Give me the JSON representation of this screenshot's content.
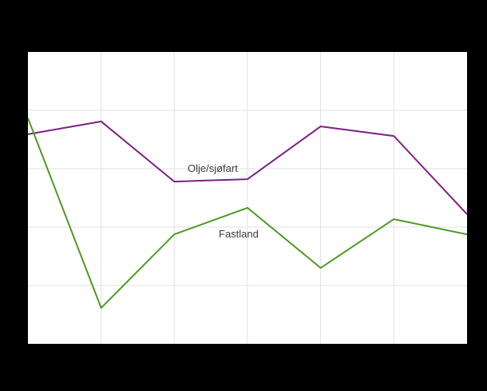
{
  "chart_data": {
    "type": "line",
    "x": [
      1,
      2,
      3,
      4,
      5,
      6,
      7
    ],
    "series": [
      {
        "name": "Olje/sjøfart",
        "color": "#7d2084",
        "values": [
          71.8,
          76.2,
          55.6,
          56.4,
          74.5,
          71.2,
          44.4
        ]
      },
      {
        "name": "Fastland",
        "color": "#4e9a23",
        "values": [
          77.3,
          12.3,
          37.5,
          46.6,
          26.0,
          42.7,
          37.5
        ]
      }
    ],
    "ylim": [
      0,
      100
    ],
    "grid": true,
    "grid_color": "#e2e2e2",
    "legend_position": "inline-labels",
    "title": "",
    "xlabel": "",
    "ylabel": ""
  },
  "labels": {
    "olje": "Olje/sjøfart",
    "fastland": "Fastland"
  },
  "style": {
    "background": "#000000",
    "plot_background": "#ffffff",
    "label_color": "#3c3c3c"
  }
}
